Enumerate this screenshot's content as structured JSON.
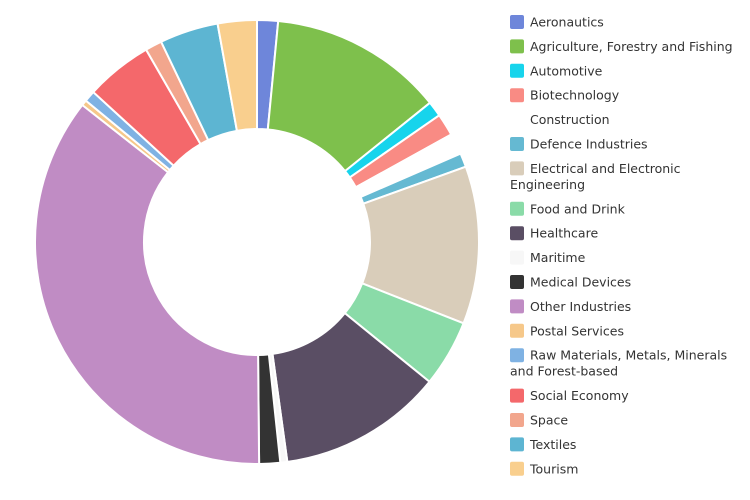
{
  "chart_data": {
    "type": "pie",
    "title": "",
    "donut": true,
    "legend_position": "right",
    "categories": [
      "Aeronautics",
      "Agriculture, Forestry and Fishing",
      "Automotive",
      "Biotechnology",
      "Construction",
      "Defence Industries",
      "Electrical and Electronic Engineering",
      "Food and Drink",
      "Healthcare",
      "Maritime",
      "Medical Devices",
      "Other Industries",
      "Postal Services",
      "Raw Materials, Metals, Minerals and Forest-based",
      "Social Economy",
      "Space",
      "Textiles",
      "Tourism"
    ],
    "values": [
      1.5,
      12.5,
      1.1,
      1.6,
      1.5,
      1.0,
      11.3,
      4.8,
      11.8,
      0.5,
      1.5,
      35.2,
      0.4,
      0.8,
      4.8,
      1.2,
      4.2,
      2.8
    ],
    "colors": [
      "#6e86da",
      "#7ec04c",
      "#17d4ec",
      "#f98b84",
      "#ffffff",
      "#65b9d2",
      "#d9cdba",
      "#8adba8",
      "#5a4e64",
      "#f7f7f7",
      "#333333",
      "#c08cc4",
      "#f6c88a",
      "#7fb2e3",
      "#f4686b",
      "#f2a68d",
      "#5db5d2",
      "#f9cf8e"
    ]
  }
}
